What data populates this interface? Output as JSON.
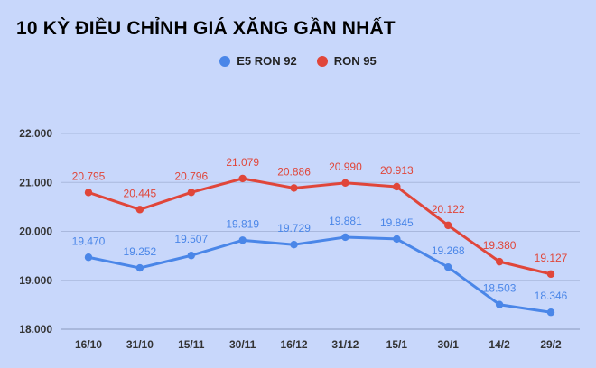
{
  "title": "10 KỲ ĐIỀU CHỈNH GIÁ XĂNG GẦN NHẤT",
  "colors": {
    "e5": "#4a86e8",
    "ron95": "#e0463a",
    "background": "#c8d7fb",
    "grid": "#a9b8dd"
  },
  "chart_data": {
    "type": "line",
    "title": "10 KỲ ĐIỀU CHỈNH GIÁ XĂNG GẦN NHẤT",
    "categories": [
      "16/10",
      "31/10",
      "15/11",
      "30/11",
      "16/12",
      "31/12",
      "15/1",
      "30/1",
      "14/2",
      "29/2"
    ],
    "series": [
      {
        "name": "E5 RON 92",
        "color": "#4a86e8",
        "values": [
          19470,
          19252,
          19507,
          19819,
          19729,
          19881,
          19845,
          19268,
          18503,
          18346
        ],
        "labels": [
          "19.470",
          "19.252",
          "19.507",
          "19.819",
          "19.729",
          "19.881",
          "19.845",
          "19.268",
          "18.503",
          "18.346"
        ]
      },
      {
        "name": "RON 95",
        "color": "#e0463a",
        "values": [
          20795,
          20445,
          20796,
          21079,
          20886,
          20990,
          20913,
          20122,
          19380,
          19127
        ],
        "labels": [
          "20.795",
          "20.445",
          "20.796",
          "21.079",
          "20.886",
          "20.990",
          "20.913",
          "20.122",
          "19.380",
          "19.127"
        ]
      }
    ],
    "ylim": [
      18000,
      22000
    ],
    "yticks": [
      18000,
      19000,
      20000,
      21000,
      22000
    ],
    "ytick_labels": [
      "18.000",
      "19.000",
      "20.000",
      "21.000",
      "22.000"
    ],
    "grid": true,
    "legend": "top-center",
    "xlabel": "",
    "ylabel": ""
  }
}
